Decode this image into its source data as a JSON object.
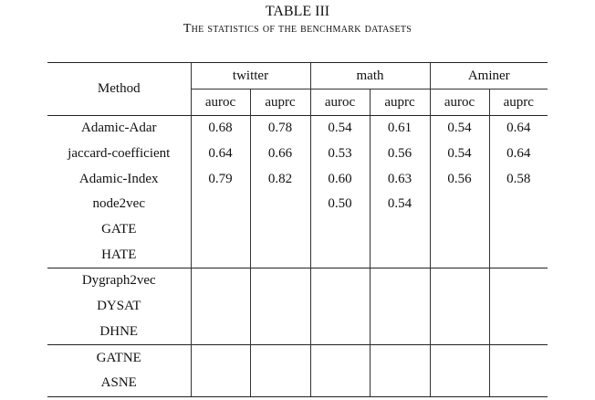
{
  "caption": {
    "title": "TABLE III",
    "subtitle": "The statistics of the benchmark datasets"
  },
  "table": {
    "method_header": "Method",
    "datasets": [
      "twitter",
      "math",
      "Aminer"
    ],
    "metrics": [
      "auroc",
      "auprc"
    ],
    "groups": [
      {
        "rows": [
          {
            "method": "Adamic-Adar",
            "values": [
              "0.68",
              "0.78",
              "0.54",
              "0.61",
              "0.54",
              "0.64"
            ]
          },
          {
            "method": "jaccard-coefficient",
            "values": [
              "0.64",
              "0.66",
              "0.53",
              "0.56",
              "0.54",
              "0.64"
            ]
          },
          {
            "method": "Adamic-Index",
            "values": [
              "0.79",
              "0.82",
              "0.60",
              "0.63",
              "0.56",
              "0.58"
            ]
          },
          {
            "method": "node2vec",
            "values": [
              "",
              "",
              "0.50",
              "0.54",
              "",
              ""
            ]
          },
          {
            "method": "GATE",
            "values": [
              "",
              "",
              "",
              "",
              "",
              ""
            ]
          },
          {
            "method": "HATE",
            "values": [
              "",
              "",
              "",
              "",
              "",
              ""
            ]
          }
        ]
      },
      {
        "rows": [
          {
            "method": "Dygraph2vec",
            "values": [
              "",
              "",
              "",
              "",
              "",
              ""
            ]
          },
          {
            "method": "DYSAT",
            "values": [
              "",
              "",
              "",
              "",
              "",
              ""
            ]
          },
          {
            "method": "DHNE",
            "values": [
              "",
              "",
              "",
              "",
              "",
              ""
            ]
          }
        ]
      },
      {
        "rows": [
          {
            "method": "GATNE",
            "values": [
              "",
              "",
              "",
              "",
              "",
              ""
            ]
          },
          {
            "method": "ASNE",
            "values": [
              "",
              "",
              "",
              "",
              "",
              ""
            ]
          }
        ]
      }
    ]
  }
}
